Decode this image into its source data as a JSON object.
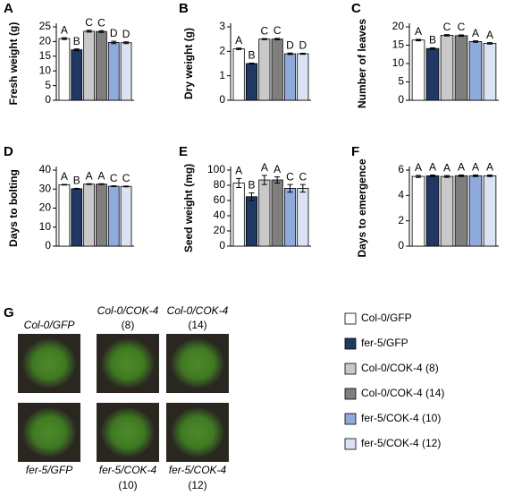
{
  "chart_data": [
    {
      "type": "bar",
      "panel": "A",
      "y_label": "Fresh weight (g)",
      "categories": [
        null,
        null,
        null,
        null,
        null,
        null
      ],
      "values": [
        21,
        17.2,
        23.5,
        23.4,
        19.7,
        19.6
      ],
      "errors": [
        0.3,
        0.3,
        0.3,
        0.3,
        0.4,
        0.3
      ],
      "letters": [
        "A",
        "B",
        "C",
        "C",
        "D",
        "D"
      ],
      "ylim": [
        0,
        25
      ],
      "yticks": [
        0,
        5,
        10,
        15,
        20,
        25
      ]
    },
    {
      "type": "bar",
      "panel": "B",
      "y_label": "Dry weight (g)",
      "categories": [
        null,
        null,
        null,
        null,
        null,
        null
      ],
      "values": [
        2.1,
        1.5,
        2.5,
        2.5,
        1.9,
        1.9
      ],
      "errors": [
        0.03,
        0.02,
        0.02,
        0.03,
        0.03,
        0.02
      ],
      "letters": [
        "A",
        "B",
        "C",
        "C",
        "D",
        "D"
      ],
      "ylim": [
        0,
        3
      ],
      "yticks": [
        0,
        1,
        2,
        3
      ]
    },
    {
      "type": "bar",
      "panel": "C",
      "y_label": "Number of leaves",
      "categories": [
        null,
        null,
        null,
        null,
        null,
        null
      ],
      "values": [
        16.4,
        14.1,
        17.7,
        17.6,
        16,
        15.5
      ],
      "errors": [
        0.2,
        0.2,
        0.2,
        0.2,
        0.2,
        0.2
      ],
      "letters": [
        "A",
        "B",
        "C",
        "C",
        "A",
        "A"
      ],
      "ylim": [
        0,
        20
      ],
      "yticks": [
        0,
        5,
        10,
        15,
        20
      ]
    },
    {
      "type": "bar",
      "panel": "D",
      "y_label": "Days to bolting",
      "categories": [
        null,
        null,
        null,
        null,
        null,
        null
      ],
      "values": [
        32.3,
        30.2,
        32.6,
        32.6,
        31.5,
        31.4
      ],
      "errors": [
        0.2,
        0.2,
        0.2,
        0.2,
        0.2,
        0.2
      ],
      "letters": [
        "A",
        "B",
        "A",
        "A",
        "C",
        "C"
      ],
      "ylim": [
        0,
        40
      ],
      "yticks": [
        0,
        10,
        20,
        30,
        40
      ]
    },
    {
      "type": "bar",
      "panel": "E",
      "y_label": "Seed weight (mg)",
      "categories": [
        null,
        null,
        null,
        null,
        null,
        null
      ],
      "values": [
        83,
        65,
        87,
        87,
        76,
        76
      ],
      "errors": [
        6,
        5,
        6,
        4,
        5,
        5
      ],
      "letters": [
        "A",
        "B",
        "A",
        "A",
        "C",
        "C"
      ],
      "ylim": [
        0,
        100
      ],
      "yticks": [
        0,
        20,
        40,
        60,
        80,
        100
      ]
    },
    {
      "type": "bar",
      "panel": "F",
      "y_label": "Days to emergence",
      "categories": [
        null,
        null,
        null,
        null,
        null,
        null
      ],
      "values": [
        5.5,
        5.55,
        5.5,
        5.55,
        5.55,
        5.55
      ],
      "errors": [
        0.08,
        0.06,
        0.07,
        0.06,
        0.06,
        0.06
      ],
      "letters": [
        "A",
        "A",
        "A",
        "A",
        "A",
        "A"
      ],
      "ylim": [
        0,
        6
      ],
      "yticks": [
        0,
        2,
        4,
        6
      ]
    }
  ],
  "legend": [
    {
      "name": "Col-0/GFP",
      "color": "#ffffff"
    },
    {
      "name": "fer-5/GFP",
      "color": "#1f3864"
    },
    {
      "name": "Col-0/COK-4 (8)",
      "color": "#c9c9c9"
    },
    {
      "name": "Col-0/COK-4 (14)",
      "color": "#7f7f7f"
    },
    {
      "name": "fer-5/COK-4 (10)",
      "color": "#8faadc"
    },
    {
      "name": "fer-5/COK-4 (12)",
      "color": "#dae3f3"
    }
  ],
  "photo_panel": {
    "panel": "G",
    "photos": [
      {
        "label": [
          "Col-0/GFP"
        ]
      },
      {
        "label": [
          "Col-0/COK-4",
          "(8)"
        ]
      },
      {
        "label": [
          "Col-0/COK-4",
          "(14)"
        ]
      },
      {
        "label": [
          "fer-5/GFP"
        ]
      },
      {
        "label": [
          "fer-5/COK-4",
          "(10)"
        ]
      },
      {
        "label": [
          "fer-5/COK-4",
          "(12)"
        ]
      }
    ]
  }
}
